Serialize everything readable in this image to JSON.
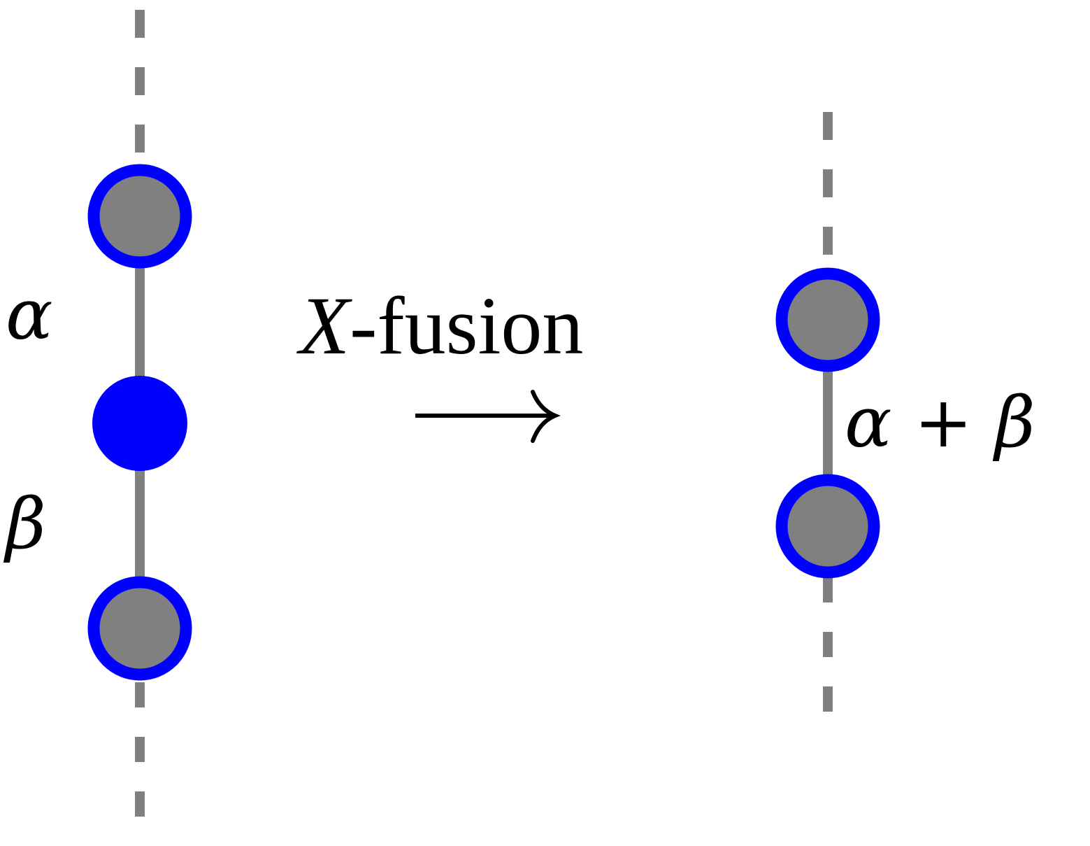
{
  "colors": {
    "wire": "#808080",
    "node_fill": "#808080",
    "node_ring": "#0000ff",
    "spider": "#0000ff",
    "text": "#000000"
  },
  "labels": {
    "alpha": "α",
    "beta": "β",
    "sum": "α + β",
    "x_symbol": "X",
    "fusion_word": "-fusion",
    "arrow": "⟶"
  },
  "left_diagram": {
    "nodes": [
      {
        "kind": "ring",
        "label": "top node"
      },
      {
        "kind": "spider",
        "label": "X spider"
      },
      {
        "kind": "ring",
        "label": "bottom node"
      }
    ],
    "edge_labels": [
      "α",
      "β"
    ]
  },
  "right_diagram": {
    "nodes": [
      {
        "kind": "ring",
        "label": "top node"
      },
      {
        "kind": "ring",
        "label": "bottom node"
      }
    ],
    "edge_labels": [
      "α + β"
    ]
  }
}
